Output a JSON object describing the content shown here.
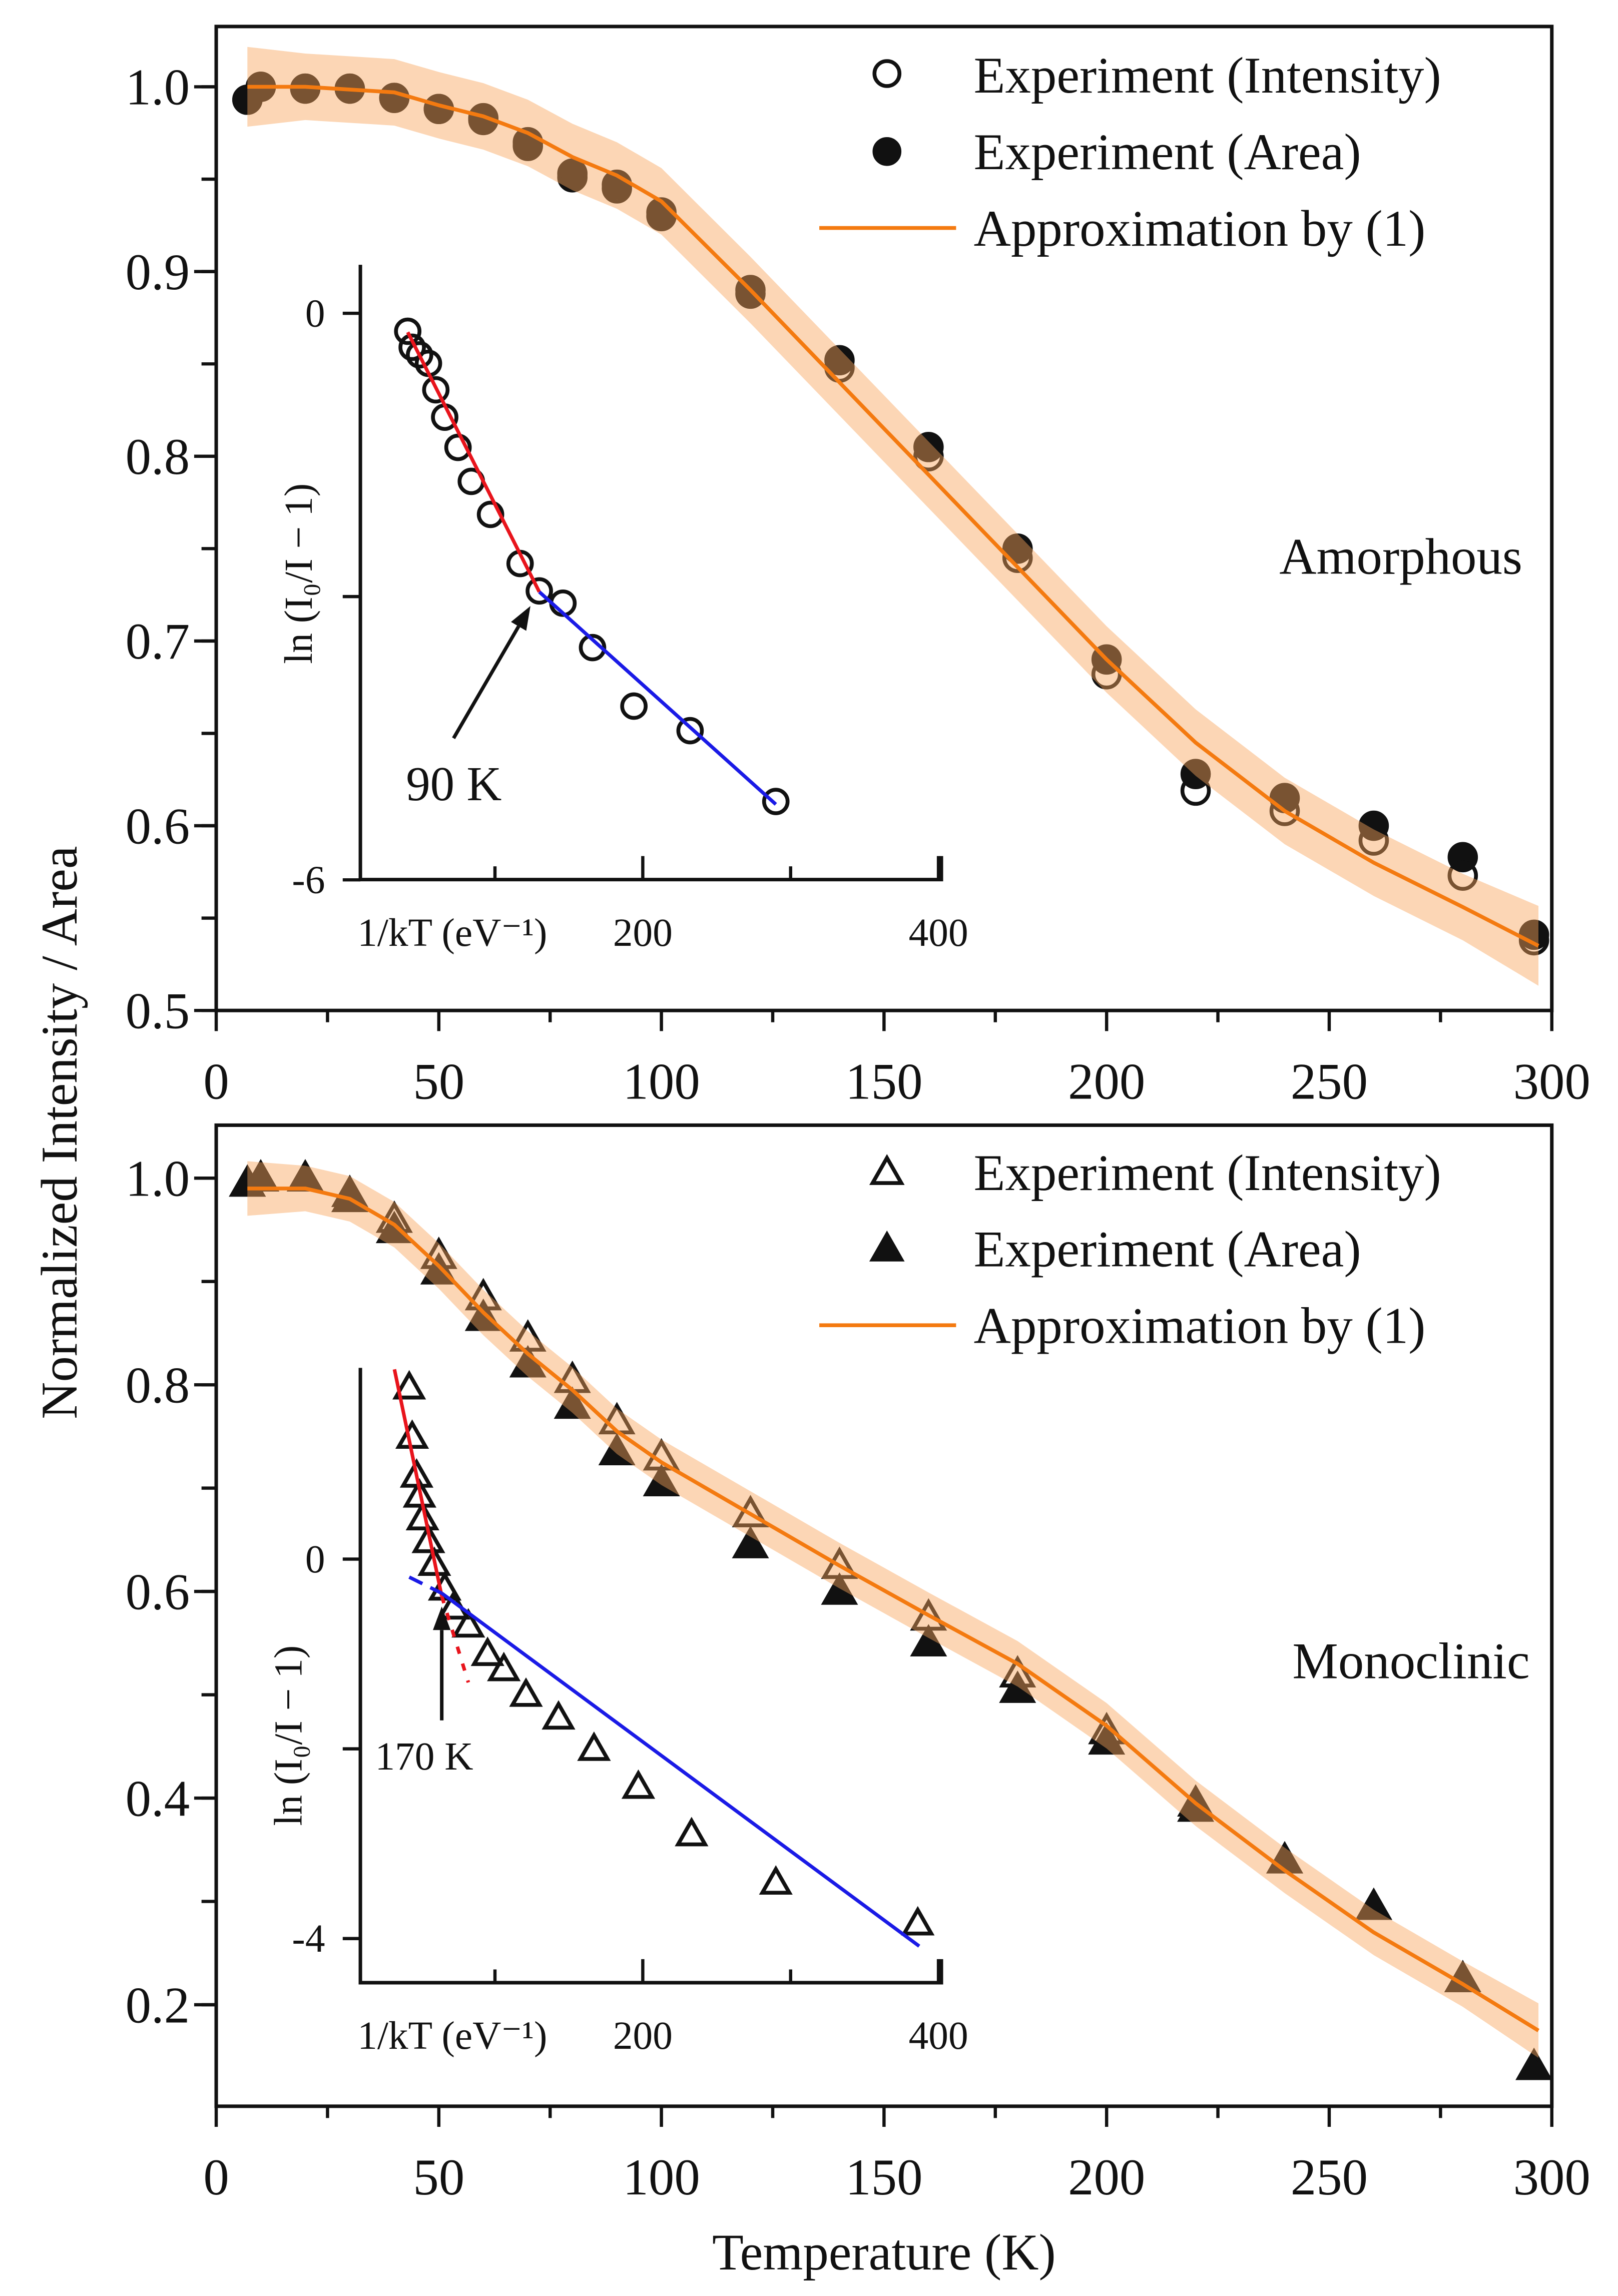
{
  "colors": {
    "fit": "#f47a10",
    "band": "#f9a55a",
    "red": "#e8141c",
    "blue": "#1a1ae6",
    "marker": "#111111"
  },
  "chart_data": [
    {
      "type": "scatter",
      "panel": "top",
      "annotation": "Amorphous",
      "xlabel": "Temperature (K)",
      "ylabel": "Normalized Intensity / Area",
      "xlim": [
        0,
        300
      ],
      "ylim": [
        0.5,
        1.033
      ],
      "xticks": [
        0,
        50,
        100,
        150,
        200,
        250,
        300
      ],
      "yticks": [
        0.5,
        0.6,
        0.7,
        0.8,
        0.9,
        1.0
      ],
      "ytick_labels": [
        "0.5",
        "0.6",
        "0.7",
        "0.8",
        "0.9",
        "1.0"
      ],
      "legend": {
        "position": "top-right",
        "entries": [
          "Experiment (Intensity)",
          "Experiment (Area)",
          "Approximation by (1)"
        ]
      },
      "x": [
        7,
        10,
        20,
        30,
        40,
        50,
        60,
        70,
        80,
        90,
        100,
        120,
        140,
        160,
        180,
        200,
        220,
        240,
        260,
        280,
        296
      ],
      "series": [
        {
          "name": "Experiment (Intensity)",
          "marker": "open-circle",
          "values": [
            0.993,
            1.0,
            0.999,
            0.999,
            0.994,
            0.988,
            0.982,
            0.968,
            0.951,
            0.945,
            0.93,
            0.888,
            0.848,
            0.8,
            0.745,
            0.682,
            0.619,
            0.608,
            0.592,
            0.573,
            0.538
          ]
        },
        {
          "name": "Experiment (Area)",
          "marker": "filled-circle",
          "values": [
            0.993,
            1.0,
            0.999,
            0.999,
            0.994,
            0.988,
            0.983,
            0.97,
            0.953,
            0.947,
            0.932,
            0.89,
            0.852,
            0.805,
            0.75,
            0.69,
            0.628,
            0.615,
            0.6,
            0.583,
            0.541
          ]
        }
      ],
      "fit": {
        "name": "Approximation by (1)",
        "x": [
          7,
          20,
          40,
          50,
          60,
          70,
          80,
          90,
          100,
          120,
          140,
          160,
          180,
          200,
          220,
          240,
          260,
          280,
          297
        ],
        "values": [
          1.0,
          1.0,
          0.997,
          0.99,
          0.984,
          0.975,
          0.962,
          0.952,
          0.938,
          0.89,
          0.84,
          0.79,
          0.74,
          0.69,
          0.645,
          0.608,
          0.58,
          0.556,
          0.535
        ],
        "band_halfwidth": 0.018
      },
      "inset": {
        "xlabel": "1/kT (eV⁻¹)",
        "ylabel": "ln (I₀/I − 1)",
        "xlim": [
          9,
          402
        ],
        "ylim": [
          -6,
          1.0
        ],
        "xticks": [
          100,
          200,
          300,
          400
        ],
        "xtick_labels": {
          "200": "200",
          "400": "400"
        },
        "yticks": [
          0,
          -3,
          -6
        ],
        "ytick_labels": {
          "0": "0",
          "-6": "-6"
        },
        "points": {
          "x": [
            41,
            44,
            49,
            55,
            60,
            66,
            75,
            84,
            97,
            117,
            130,
            146,
            166,
            194,
            232,
            290
          ],
          "y": [
            -0.19,
            -0.36,
            -0.44,
            -0.53,
            -0.81,
            -1.1,
            -1.42,
            -1.78,
            -2.13,
            -2.65,
            -2.94,
            -3.07,
            -3.54,
            -4.16,
            -4.42,
            -5.17
          ]
        },
        "red_fit": [
          [
            41,
            -0.2
          ],
          [
            130,
            -2.95
          ]
        ],
        "blue_fit": [
          [
            130,
            -2.95
          ],
          [
            290,
            -5.2
          ]
        ],
        "arrow": {
          "from": [
            72,
            -4.5
          ],
          "to": [
            124,
            -3.1
          ],
          "label": "90 K"
        }
      }
    },
    {
      "type": "scatter",
      "panel": "bottom",
      "annotation": "Monoclinic",
      "xlabel": "Temperature (K)",
      "ylabel": "Normalized Intensity / Area",
      "xlim": [
        0,
        300
      ],
      "ylim": [
        0.1,
        1.05
      ],
      "xticks": [
        0,
        50,
        100,
        150,
        200,
        250,
        300
      ],
      "yticks": [
        0.2,
        0.4,
        0.6,
        0.8,
        1.0
      ],
      "ytick_labels": [
        "0.2",
        "0.4",
        "0.6",
        "0.8",
        "1.0"
      ],
      "legend": {
        "position": "top-right",
        "entries": [
          "Experiment (Intensity)",
          "Experiment (Area)",
          "Approximation by (1)"
        ]
      },
      "x": [
        7,
        10,
        20,
        30,
        40,
        50,
        60,
        70,
        80,
        90,
        100,
        120,
        140,
        160,
        180,
        200,
        220,
        240,
        260,
        280,
        296
      ],
      "series": [
        {
          "name": "Experiment (Intensity)",
          "marker": "open-triangle",
          "values": [
            0.995,
            1.0,
            1.0,
            0.985,
            0.96,
            0.925,
            0.885,
            0.845,
            0.805,
            0.765,
            0.73,
            0.675,
            0.625,
            0.575,
            0.52,
            0.465,
            0.395,
            0.34,
            0.295,
            0.225,
            0.14
          ]
        },
        {
          "name": "Experiment (Area)",
          "marker": "filled-triangle",
          "values": [
            0.995,
            1.0,
            1.0,
            0.98,
            0.95,
            0.91,
            0.865,
            0.82,
            0.78,
            0.735,
            0.705,
            0.645,
            0.6,
            0.55,
            0.505,
            0.455,
            0.39,
            0.34,
            0.295,
            0.225,
            0.14
          ]
        }
      ],
      "fit": {
        "name": "Approximation by (1)",
        "x": [
          7,
          20,
          30,
          40,
          50,
          60,
          70,
          80,
          90,
          100,
          120,
          140,
          160,
          180,
          200,
          220,
          240,
          260,
          280,
          297
        ],
        "values": [
          0.99,
          0.99,
          0.98,
          0.955,
          0.915,
          0.87,
          0.83,
          0.795,
          0.755,
          0.725,
          0.675,
          0.625,
          0.577,
          0.53,
          0.47,
          0.395,
          0.33,
          0.27,
          0.22,
          0.175
        ],
        "band_halfwidth": 0.022
      },
      "inset": {
        "xlabel": "1/kT (eV⁻¹)",
        "ylabel": "ln (I₀/I − 1)",
        "xlim": [
          9,
          402
        ],
        "ylim": [
          -4.47,
          2.0
        ],
        "xticks": [
          100,
          200,
          300,
          400
        ],
        "xtick_labels": {
          "200": "200",
          "400": "400"
        },
        "yticks": [
          0,
          -2,
          -4
        ],
        "ytick_labels": {
          "0": "0",
          "-4": "-4"
        },
        "points": {
          "x": [
            42,
            44,
            47,
            49,
            51,
            55,
            59,
            66,
            72,
            82,
            95,
            106,
            121,
            143,
            167,
            197,
            233,
            290,
            386
          ],
          "y": [
            1.81,
            1.29,
            0.88,
            0.67,
            0.43,
            0.19,
            -0.05,
            -0.31,
            -0.51,
            -0.7,
            -1.0,
            -1.16,
            -1.43,
            -1.67,
            -2.0,
            -2.4,
            -2.9,
            -3.41,
            -3.84
          ]
        },
        "red_fit": [
          [
            32,
            2.0
          ],
          [
            64,
            -0.39
          ]
        ],
        "red_dotted": [
          [
            64,
            -0.39
          ],
          [
            82,
            -1.3
          ]
        ],
        "blue_dashed": [
          [
            42,
            -0.19
          ],
          [
            64,
            -0.36
          ]
        ],
        "blue_fit": [
          [
            64,
            -0.36
          ],
          [
            387,
            -4.08
          ]
        ],
        "arrow": {
          "from": [
            64,
            -1.7
          ],
          "to": [
            64,
            -0.5
          ],
          "label": "170 K"
        }
      }
    }
  ]
}
